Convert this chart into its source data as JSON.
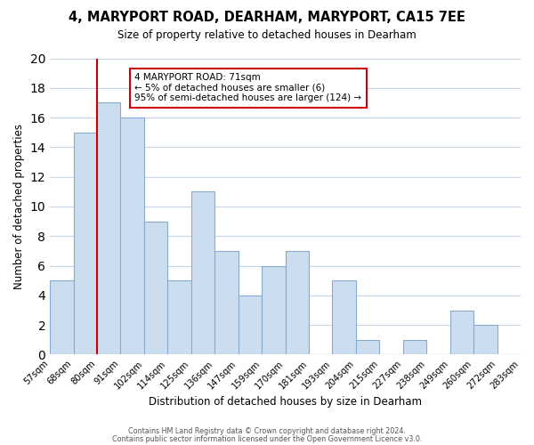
{
  "title": "4, MARYPORT ROAD, DEARHAM, MARYPORT, CA15 7EE",
  "subtitle": "Size of property relative to detached houses in Dearham",
  "xlabel": "Distribution of detached houses by size in Dearham",
  "ylabel": "Number of detached properties",
  "bin_edges": [
    "57sqm",
    "68sqm",
    "80sqm",
    "91sqm",
    "102sqm",
    "114sqm",
    "125sqm",
    "136sqm",
    "147sqm",
    "159sqm",
    "170sqm",
    "181sqm",
    "193sqm",
    "204sqm",
    "215sqm",
    "227sqm",
    "238sqm",
    "249sqm",
    "260sqm",
    "272sqm",
    "283sqm"
  ],
  "values": [
    5,
    15,
    17,
    16,
    9,
    5,
    11,
    7,
    4,
    6,
    7,
    0,
    5,
    1,
    0,
    1,
    0,
    3,
    2,
    0
  ],
  "bar_color": "#ccddf0",
  "bar_edge_color": "#88aacc",
  "red_line_after_index": 1,
  "marker_color": "#cc0000",
  "annotation_title": "4 MARYPORT ROAD: 71sqm",
  "annotation_line1": "← 5% of detached houses are smaller (6)",
  "annotation_line2": "95% of semi-detached houses are larger (124) →",
  "annotation_box_edge": "#cc0000",
  "ylim": [
    0,
    20
  ],
  "yticks": [
    0,
    2,
    4,
    6,
    8,
    10,
    12,
    14,
    16,
    18,
    20
  ],
  "footer1": "Contains HM Land Registry data © Crown copyright and database right 2024.",
  "footer2": "Contains public sector information licensed under the Open Government Licence v3.0.",
  "background_color": "#ffffff",
  "grid_color": "#c8d4e8"
}
